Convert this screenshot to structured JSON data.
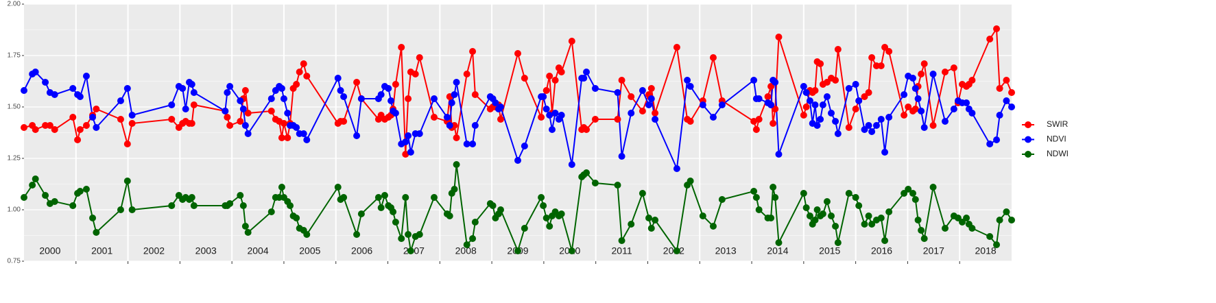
{
  "chart_data": {
    "type": "line",
    "x": [
      2000.0,
      2000.16,
      2000.22,
      2000.41,
      2000.5,
      2000.59,
      2000.94,
      2001.03,
      2001.08,
      2001.2,
      2001.32,
      2001.39,
      2001.86,
      2001.99,
      2002.08,
      2002.84,
      2002.98,
      2003.05,
      2003.11,
      2003.18,
      2003.23,
      2003.27,
      2003.87,
      2003.91,
      2003.96,
      2004.16,
      2004.22,
      2004.26,
      2004.31,
      2004.76,
      2004.84,
      2004.91,
      2004.96,
      2005.0,
      2005.07,
      2005.12,
      2005.18,
      2005.24,
      2005.3,
      2005.38,
      2005.44,
      2006.04,
      2006.09,
      2006.15,
      2006.4,
      2006.49,
      2006.82,
      2006.87,
      2006.94,
      2007.01,
      2007.06,
      2007.1,
      2007.15,
      2007.26,
      2007.34,
      2007.39,
      2007.44,
      2007.53,
      2007.61,
      2007.89,
      2008.14,
      2008.19,
      2008.23,
      2008.28,
      2008.32,
      2008.52,
      2008.63,
      2008.68,
      2008.97,
      2009.02,
      2009.07,
      2009.13,
      2009.17,
      2009.5,
      2009.63,
      2009.95,
      2009.99,
      2010.05,
      2010.11,
      2010.16,
      2010.22,
      2010.29,
      2010.34,
      2010.54,
      2010.73,
      2010.77,
      2010.82,
      2010.99,
      2011.42,
      2011.5,
      2011.68,
      2011.9,
      2012.02,
      2012.07,
      2012.14,
      2012.56,
      2012.76,
      2012.82,
      2013.06,
      2013.26,
      2013.43,
      2014.04,
      2014.09,
      2014.14,
      2014.31,
      2014.37,
      2014.41,
      2014.45,
      2014.52,
      2015.0,
      2015.05,
      2015.12,
      2015.17,
      2015.22,
      2015.26,
      2015.32,
      2015.37,
      2015.45,
      2015.53,
      2015.61,
      2015.66,
      2015.87,
      2016.0,
      2016.06,
      2016.17,
      2016.25,
      2016.31,
      2016.4,
      2016.49,
      2016.56,
      2016.64,
      2016.93,
      2017.01,
      2017.1,
      2017.15,
      2017.2,
      2017.26,
      2017.32,
      2017.49,
      2017.72,
      2017.89,
      2017.97,
      2018.05,
      2018.13,
      2018.18,
      2018.24,
      2018.58,
      2018.71,
      2018.77,
      2018.9,
      2019.0
    ],
    "series": [
      {
        "name": "SWIR",
        "color": "#ff0000",
        "values": [
          1.4,
          1.41,
          1.39,
          1.41,
          1.41,
          1.39,
          1.45,
          1.34,
          1.39,
          1.41,
          1.46,
          1.49,
          1.44,
          1.32,
          1.42,
          1.44,
          1.4,
          1.42,
          1.43,
          1.42,
          1.42,
          1.51,
          1.48,
          1.45,
          1.41,
          1.43,
          1.54,
          1.58,
          1.47,
          1.48,
          1.44,
          1.43,
          1.35,
          1.42,
          1.35,
          1.42,
          1.59,
          1.61,
          1.67,
          1.71,
          1.65,
          1.42,
          1.43,
          1.43,
          1.62,
          1.54,
          1.44,
          1.46,
          1.44,
          1.45,
          1.46,
          1.49,
          1.61,
          1.79,
          1.27,
          1.54,
          1.67,
          1.66,
          1.74,
          1.45,
          1.43,
          1.55,
          1.4,
          1.41,
          1.35,
          1.66,
          1.77,
          1.56,
          1.49,
          1.5,
          1.5,
          1.51,
          1.44,
          1.76,
          1.64,
          1.45,
          1.55,
          1.58,
          1.65,
          1.47,
          1.63,
          1.69,
          1.67,
          1.82,
          1.39,
          1.4,
          1.39,
          1.44,
          1.44,
          1.63,
          1.55,
          1.48,
          1.56,
          1.59,
          1.47,
          1.79,
          1.44,
          1.43,
          1.53,
          1.74,
          1.53,
          1.43,
          1.39,
          1.44,
          1.55,
          1.6,
          1.42,
          1.49,
          1.84,
          1.46,
          1.5,
          1.58,
          1.57,
          1.58,
          1.72,
          1.71,
          1.61,
          1.62,
          1.64,
          1.63,
          1.78,
          1.4,
          1.49,
          1.53,
          1.55,
          1.57,
          1.74,
          1.7,
          1.7,
          1.79,
          1.77,
          1.46,
          1.5,
          1.48,
          1.49,
          1.6,
          1.66,
          1.71,
          1.41,
          1.67,
          1.69,
          1.52,
          1.61,
          1.6,
          1.61,
          1.63,
          1.83,
          1.88,
          1.59,
          1.63,
          1.57
        ]
      },
      {
        "name": "NDVI",
        "color": "#0000ff",
        "values": [
          1.58,
          1.66,
          1.67,
          1.62,
          1.57,
          1.56,
          1.59,
          1.56,
          1.55,
          1.65,
          1.45,
          1.4,
          1.53,
          1.59,
          1.46,
          1.51,
          1.6,
          1.59,
          1.49,
          1.62,
          1.61,
          1.57,
          1.48,
          1.57,
          1.6,
          1.53,
          1.49,
          1.41,
          1.37,
          1.54,
          1.58,
          1.6,
          1.59,
          1.54,
          1.47,
          1.41,
          1.41,
          1.4,
          1.37,
          1.37,
          1.34,
          1.64,
          1.58,
          1.55,
          1.36,
          1.54,
          1.54,
          1.56,
          1.6,
          1.59,
          1.53,
          1.48,
          1.47,
          1.32,
          1.33,
          1.36,
          1.28,
          1.37,
          1.37,
          1.54,
          1.45,
          1.41,
          1.52,
          1.56,
          1.62,
          1.32,
          1.32,
          1.41,
          1.55,
          1.54,
          1.52,
          1.49,
          1.5,
          1.24,
          1.31,
          1.55,
          1.55,
          1.49,
          1.46,
          1.39,
          1.47,
          1.44,
          1.46,
          1.22,
          1.64,
          1.64,
          1.67,
          1.59,
          1.57,
          1.26,
          1.47,
          1.58,
          1.51,
          1.54,
          1.44,
          1.2,
          1.63,
          1.6,
          1.51,
          1.45,
          1.51,
          1.63,
          1.54,
          1.54,
          1.52,
          1.51,
          1.63,
          1.62,
          1.27,
          1.6,
          1.57,
          1.53,
          1.42,
          1.51,
          1.41,
          1.44,
          1.51,
          1.55,
          1.47,
          1.43,
          1.37,
          1.59,
          1.61,
          1.53,
          1.39,
          1.41,
          1.38,
          1.41,
          1.44,
          1.28,
          1.45,
          1.56,
          1.65,
          1.64,
          1.59,
          1.54,
          1.48,
          1.4,
          1.66,
          1.43,
          1.49,
          1.53,
          1.52,
          1.52,
          1.49,
          1.47,
          1.32,
          1.34,
          1.46,
          1.53,
          1.5
        ]
      },
      {
        "name": "NDWI",
        "color": "#006400",
        "values": [
          1.06,
          1.12,
          1.15,
          1.07,
          1.03,
          1.04,
          1.02,
          1.08,
          1.09,
          1.1,
          0.96,
          0.89,
          1.0,
          1.14,
          1.0,
          1.02,
          1.07,
          1.05,
          1.06,
          1.05,
          1.06,
          1.02,
          1.02,
          1.02,
          1.03,
          1.07,
          1.02,
          0.92,
          0.89,
          0.99,
          1.06,
          1.06,
          1.11,
          1.06,
          1.04,
          1.02,
          0.97,
          0.96,
          0.91,
          0.9,
          0.88,
          1.11,
          1.05,
          1.06,
          0.88,
          0.98,
          1.06,
          1.01,
          1.07,
          1.02,
          1.01,
          0.99,
          0.94,
          0.86,
          1.06,
          0.88,
          0.8,
          0.87,
          0.88,
          1.06,
          0.98,
          0.97,
          1.08,
          1.1,
          1.22,
          0.83,
          0.86,
          0.94,
          1.03,
          1.02,
          0.96,
          0.98,
          1.0,
          0.8,
          0.91,
          1.06,
          1.02,
          0.96,
          0.92,
          0.97,
          0.99,
          0.97,
          0.98,
          0.8,
          1.16,
          1.17,
          1.18,
          1.13,
          1.12,
          0.85,
          0.93,
          1.08,
          0.96,
          0.91,
          0.95,
          0.8,
          1.12,
          1.14,
          0.97,
          0.92,
          1.05,
          1.09,
          1.06,
          1.0,
          0.96,
          0.96,
          1.11,
          1.06,
          0.84,
          1.08,
          1.01,
          0.97,
          0.93,
          0.95,
          1.0,
          0.97,
          0.98,
          1.04,
          0.97,
          0.92,
          0.84,
          1.08,
          1.06,
          1.02,
          0.93,
          0.97,
          0.93,
          0.95,
          0.96,
          0.85,
          0.99,
          1.08,
          1.1,
          1.08,
          1.05,
          0.95,
          0.9,
          0.86,
          1.11,
          0.91,
          0.97,
          0.96,
          0.94,
          0.96,
          0.93,
          0.91,
          0.87,
          0.83,
          0.95,
          0.99,
          0.95
        ]
      }
    ],
    "xlim": [
      2000,
      2019
    ],
    "xticks": [
      {
        "value": 2000.5,
        "label": "2000"
      },
      {
        "value": 2001.5,
        "label": "2001"
      },
      {
        "value": 2002.5,
        "label": "2002"
      },
      {
        "value": 2003.5,
        "label": "2003"
      },
      {
        "value": 2004.5,
        "label": "2004"
      },
      {
        "value": 2005.5,
        "label": "2005"
      },
      {
        "value": 2006.5,
        "label": "2006"
      },
      {
        "value": 2007.5,
        "label": "2007"
      },
      {
        "value": 2008.5,
        "label": "2008"
      },
      {
        "value": 2009.5,
        "label": "2009"
      },
      {
        "value": 2010.5,
        "label": "2010"
      },
      {
        "value": 2011.5,
        "label": "2011"
      },
      {
        "value": 2012.5,
        "label": "2012"
      },
      {
        "value": 2013.5,
        "label": "2013"
      },
      {
        "value": 2014.5,
        "label": "2014"
      },
      {
        "value": 2015.5,
        "label": "2015"
      },
      {
        "value": 2016.5,
        "label": "2016"
      },
      {
        "value": 2017.5,
        "label": "2017"
      },
      {
        "value": 2018.5,
        "label": "2018"
      }
    ],
    "ylim": [
      0.75,
      2.0
    ],
    "yticks": [
      0.75,
      {
        "value": 1.0,
        "label": "1.00"
      },
      1.25,
      {
        "value": 1.5,
        "label": "1.50"
      },
      1.75,
      {
        "value": 2.0,
        "label": "2.00"
      }
    ],
    "grid": true,
    "legend": "right"
  }
}
